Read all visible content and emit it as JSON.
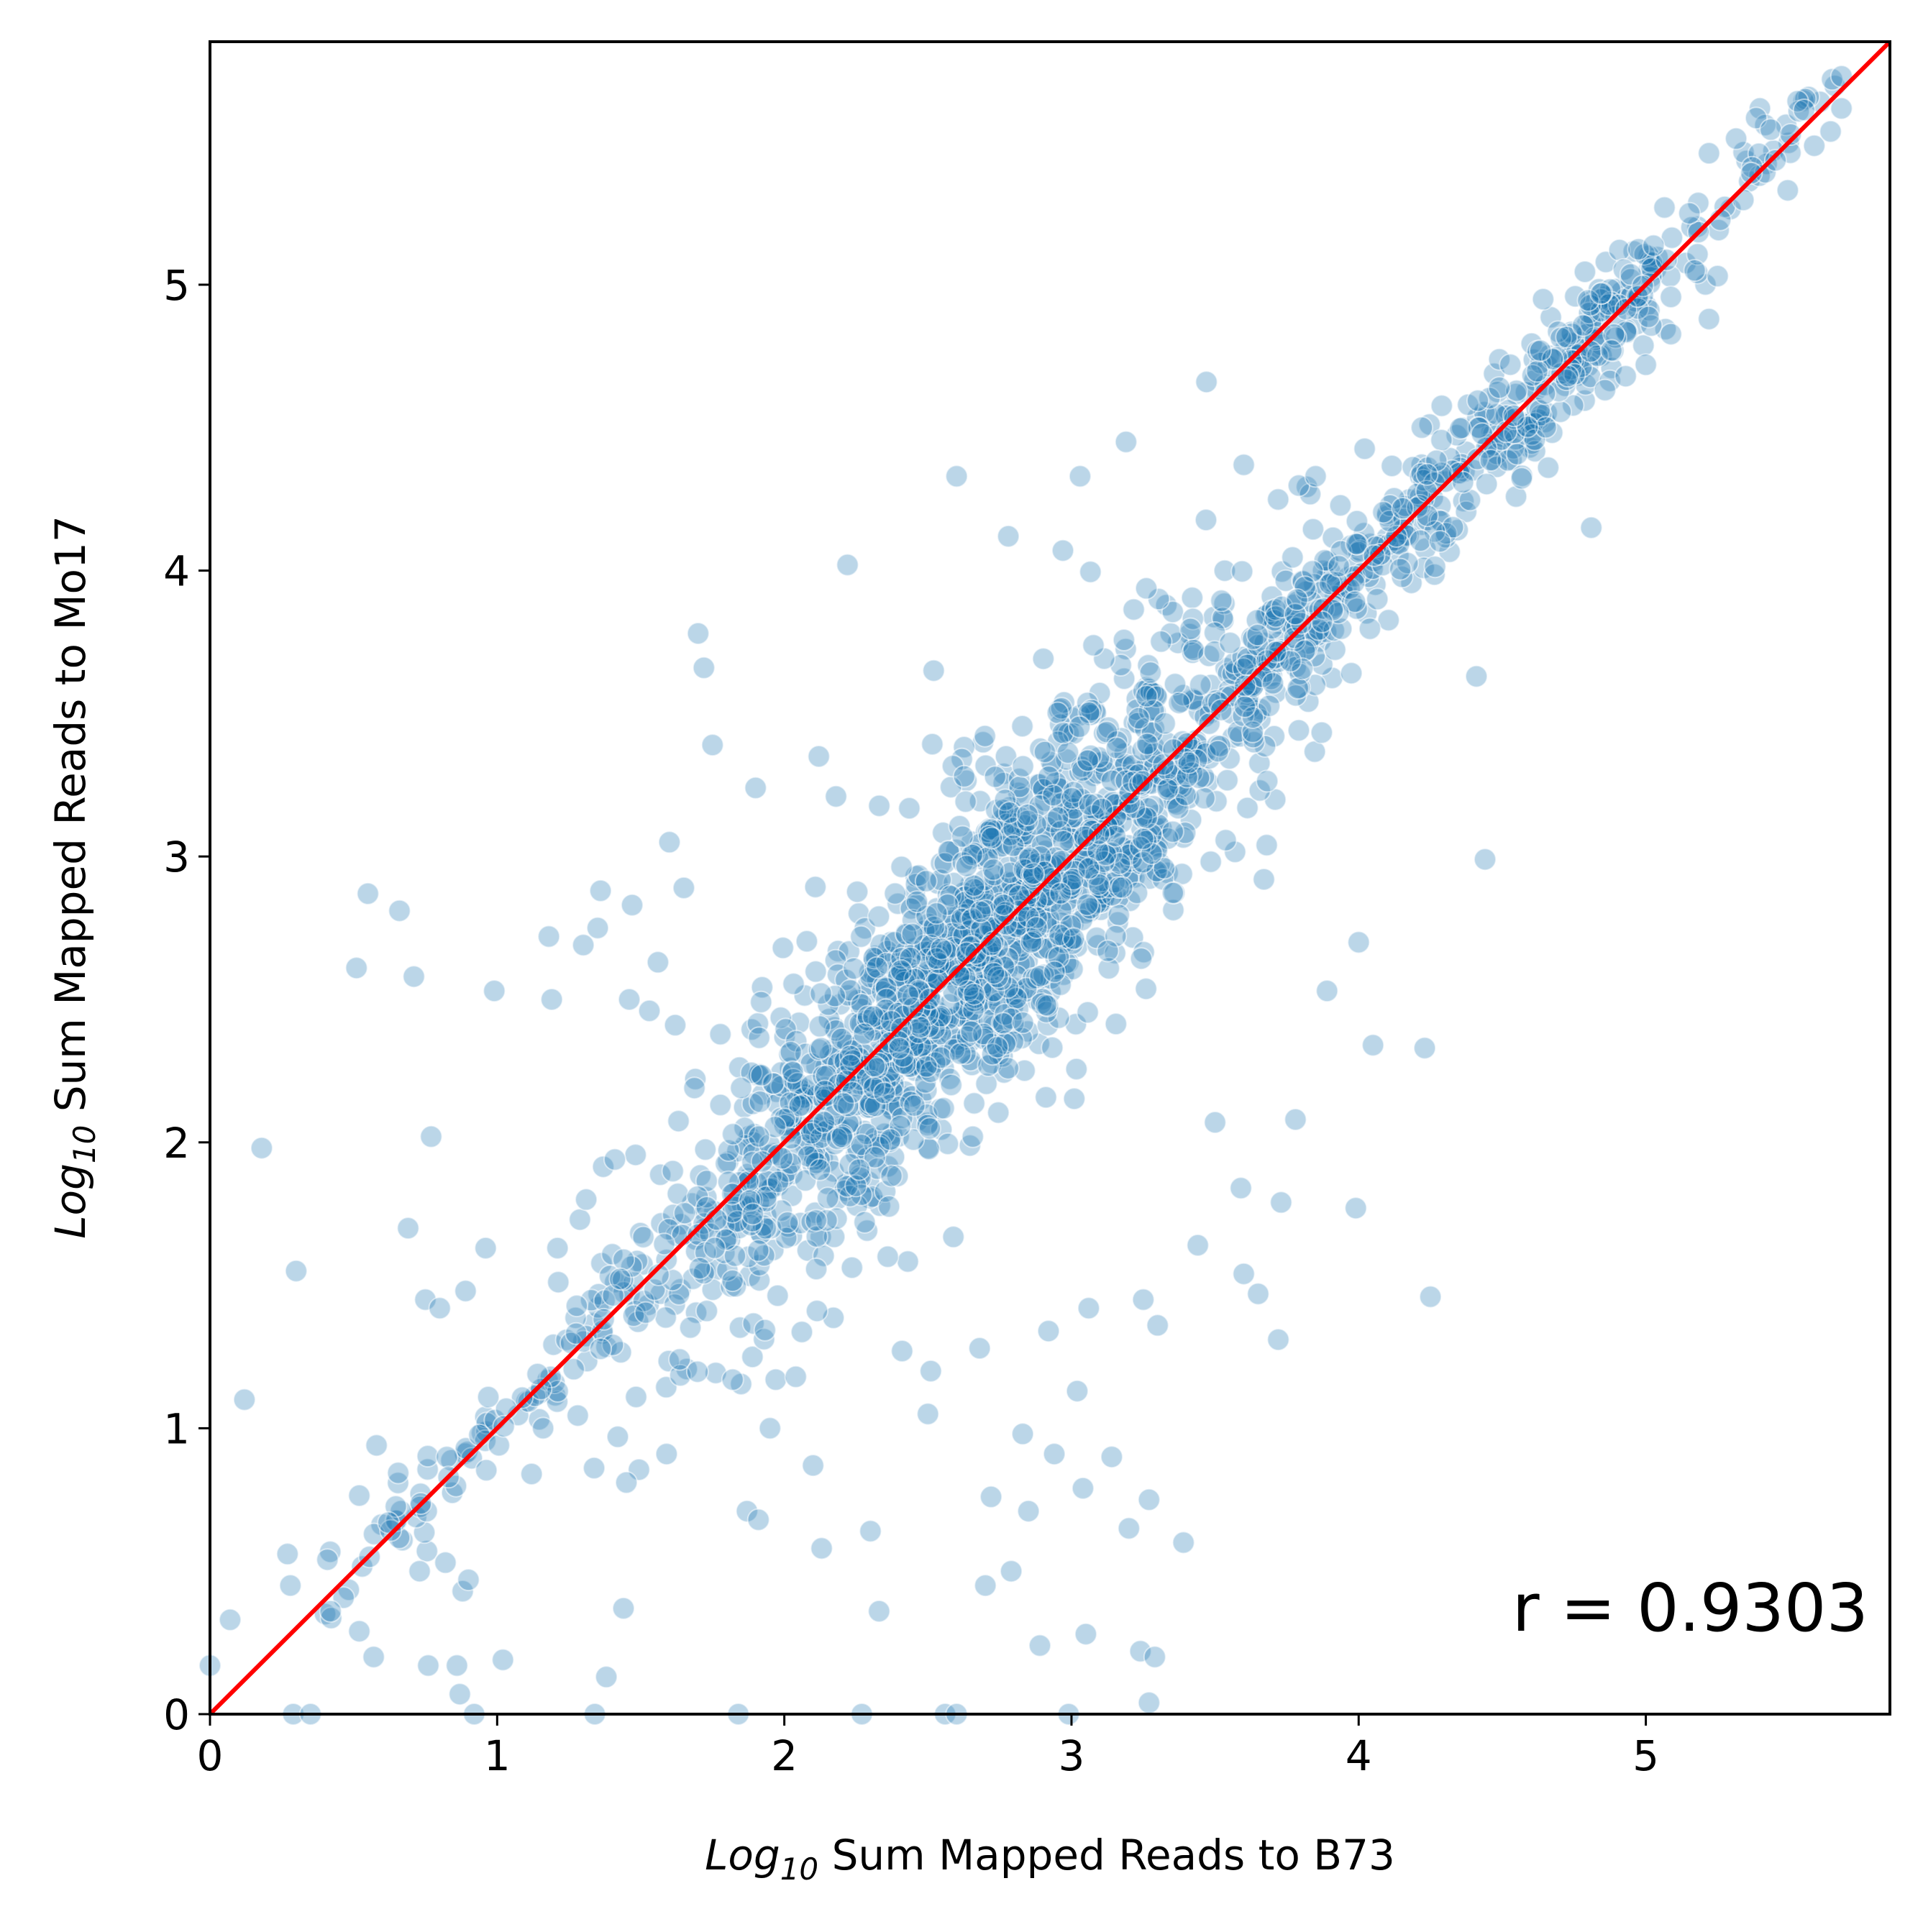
{
  "chart_data": {
    "type": "scatter",
    "xlabel": {
      "prefix": "Log",
      "subscript": "10",
      "rest": " Sum Mapped Reads to B73"
    },
    "ylabel": {
      "prefix": "Log",
      "subscript": "10",
      "rest": " Sum Mapped Reads to Mo17"
    },
    "xlim": [
      0,
      5.85
    ],
    "ylim": [
      0,
      5.85
    ],
    "xticks": [
      0,
      1,
      2,
      3,
      4,
      5
    ],
    "yticks": [
      0,
      1,
      2,
      3,
      4,
      5
    ],
    "grid": false,
    "annotation": "r = 0.9303",
    "correlation_r": 0.9303,
    "reference_line": {
      "x": [
        0,
        5.85
      ],
      "y": [
        0,
        5.85
      ],
      "color": "#ff0000"
    },
    "point_color": "#1f77b4",
    "series": [
      {
        "outliers": [
          [
            0.0,
            0.17
          ],
          [
            0.07,
            0.33
          ],
          [
            0.12,
            1.1
          ],
          [
            0.18,
            1.98
          ],
          [
            0.27,
            0.56
          ],
          [
            0.28,
            0.45
          ],
          [
            0.3,
            1.55
          ],
          [
            0.29,
            0.0
          ],
          [
            0.35,
            0.0
          ],
          [
            0.42,
            0.36
          ],
          [
            0.51,
            2.61
          ],
          [
            0.52,
            0.29
          ],
          [
            0.55,
            2.87
          ],
          [
            0.57,
            0.2
          ],
          [
            0.58,
            0.94
          ],
          [
            0.66,
            2.81
          ],
          [
            0.69,
            1.7
          ],
          [
            0.71,
            2.58
          ],
          [
            0.73,
            0.5
          ],
          [
            0.75,
            1.45
          ],
          [
            0.76,
            0.17
          ],
          [
            0.77,
            2.02
          ],
          [
            0.8,
            1.42
          ],
          [
            0.82,
            0.53
          ],
          [
            0.86,
            0.17
          ],
          [
            0.87,
            0.07
          ],
          [
            0.88,
            0.43
          ],
          [
            0.89,
            1.48
          ],
          [
            0.9,
            0.47
          ],
          [
            0.92,
            0.0
          ],
          [
            0.96,
            1.63
          ],
          [
            0.99,
            2.53
          ],
          [
            1.02,
            0.19
          ],
          [
            1.12,
            0.84
          ],
          [
            1.16,
            1.0
          ],
          [
            1.18,
            2.72
          ],
          [
            1.19,
            2.5
          ],
          [
            1.21,
            1.63
          ],
          [
            1.3,
            2.69
          ],
          [
            1.31,
            1.8
          ],
          [
            1.34,
            0.0
          ],
          [
            1.35,
            2.75
          ],
          [
            1.36,
            2.88
          ],
          [
            1.38,
            0.13
          ],
          [
            1.41,
            1.94
          ],
          [
            1.42,
            0.97
          ],
          [
            1.44,
            0.37
          ],
          [
            1.45,
            0.81
          ],
          [
            1.46,
            2.5
          ],
          [
            1.47,
            2.83
          ],
          [
            1.53,
            2.46
          ],
          [
            1.56,
            2.63
          ],
          [
            1.59,
            0.91
          ],
          [
            1.62,
            2.41
          ],
          [
            1.65,
            2.89
          ],
          [
            1.6,
            3.05
          ],
          [
            1.7,
            3.78
          ],
          [
            1.72,
            3.66
          ],
          [
            1.75,
            3.39
          ],
          [
            1.82,
            1.17
          ],
          [
            1.84,
            0.0
          ],
          [
            1.87,
            0.71
          ],
          [
            1.9,
            3.24
          ],
          [
            1.91,
            0.68
          ],
          [
            1.95,
            1.0
          ],
          [
            1.97,
            1.17
          ],
          [
            2.04,
            1.18
          ],
          [
            2.1,
            0.87
          ],
          [
            2.12,
            3.35
          ],
          [
            2.13,
            0.58
          ],
          [
            2.18,
            3.21
          ],
          [
            2.22,
            4.02
          ],
          [
            2.27,
            0.0
          ],
          [
            2.3,
            0.64
          ],
          [
            2.33,
            0.36
          ],
          [
            2.36,
            1.6
          ],
          [
            2.41,
            1.27
          ],
          [
            2.5,
            1.05
          ],
          [
            2.51,
            1.2
          ],
          [
            2.52,
            3.65
          ],
          [
            2.56,
            0.0
          ],
          [
            2.6,
            4.33
          ],
          [
            2.6,
            0.0
          ],
          [
            2.68,
            1.28
          ],
          [
            2.7,
            0.45
          ],
          [
            2.72,
            0.76
          ],
          [
            2.78,
            4.12
          ],
          [
            2.79,
            0.5
          ],
          [
            2.83,
            0.98
          ],
          [
            2.85,
            0.71
          ],
          [
            2.89,
            0.24
          ],
          [
            2.92,
            1.34
          ],
          [
            2.94,
            0.91
          ],
          [
            2.97,
            4.07
          ],
          [
            2.99,
            0.0
          ],
          [
            3.02,
            1.13
          ],
          [
            3.03,
            4.33
          ],
          [
            3.04,
            0.79
          ],
          [
            3.05,
            0.28
          ],
          [
            3.06,
            1.42
          ],
          [
            3.14,
            0.9
          ],
          [
            3.19,
            4.45
          ],
          [
            3.2,
            0.65
          ],
          [
            3.24,
            0.22
          ],
          [
            3.25,
            1.45
          ],
          [
            3.27,
            0.75
          ],
          [
            3.27,
            0.04
          ],
          [
            3.29,
            0.2
          ],
          [
            3.3,
            1.36
          ],
          [
            3.39,
            0.6
          ],
          [
            3.44,
            1.64
          ],
          [
            3.47,
            4.66
          ],
          [
            3.5,
            2.07
          ],
          [
            3.59,
            1.84
          ],
          [
            3.6,
            1.54
          ],
          [
            3.6,
            4.37
          ],
          [
            3.65,
            1.47
          ],
          [
            3.67,
            2.92
          ],
          [
            3.72,
            1.31
          ],
          [
            3.73,
            1.79
          ],
          [
            3.78,
            2.08
          ],
          [
            3.85,
            4.33
          ],
          [
            3.89,
            2.53
          ],
          [
            3.99,
            1.77
          ],
          [
            4.0,
            2.7
          ],
          [
            4.05,
            2.34
          ],
          [
            4.22,
            4.5
          ],
          [
            4.23,
            2.33
          ],
          [
            4.25,
            1.46
          ],
          [
            4.41,
            3.63
          ],
          [
            4.44,
            2.99
          ],
          [
            4.49,
            4.64
          ],
          [
            4.66,
            4.36
          ],
          [
            4.81,
            4.15
          ],
          [
            4.88,
            4.77
          ],
          [
            4.93,
            4.68
          ],
          [
            5.0,
            4.72
          ],
          [
            5.17,
            5.05
          ],
          [
            5.22,
            5.46
          ],
          [
            5.22,
            4.88
          ],
          [
            5.25,
            5.03
          ]
        ]
      }
    ]
  }
}
